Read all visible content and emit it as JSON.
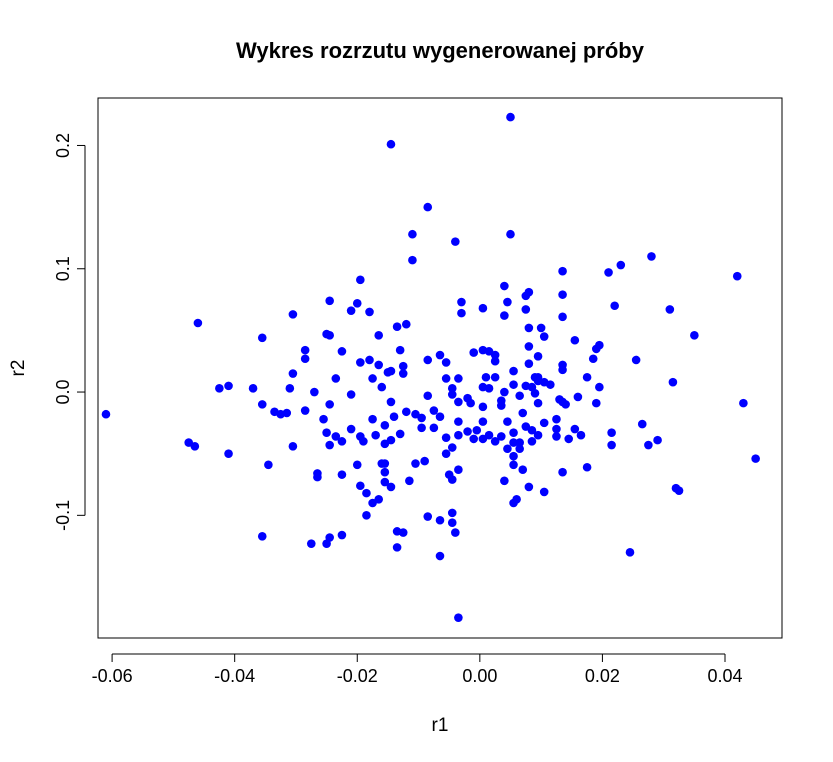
{
  "chart_data": {
    "type": "scatter",
    "title": "Wykres rozrzutu wygenerowanej próby",
    "xlabel": "r1",
    "ylabel": "r2",
    "xlim": [
      -0.0623,
      0.0493
    ],
    "ylim": [
      -0.1995,
      0.2385
    ],
    "x_ticks": [
      -0.06,
      -0.04,
      -0.02,
      0.0,
      0.02,
      0.04
    ],
    "x_tick_labels": [
      "-0.06",
      "-0.04",
      "-0.02",
      "0.00",
      "0.02",
      "0.04"
    ],
    "y_ticks": [
      -0.1,
      0.0,
      0.1,
      0.2
    ],
    "y_tick_labels": [
      "-0.1",
      "0.0",
      "0.1",
      "0.2"
    ],
    "grid": false,
    "point_color": "#0000ff",
    "points": [
      [
        0.005,
        0.223
      ],
      [
        -0.0145,
        0.201
      ],
      [
        -0.0085,
        0.15
      ],
      [
        -0.011,
        0.128
      ],
      [
        0.005,
        0.128
      ],
      [
        -0.004,
        0.122
      ],
      [
        -0.011,
        0.107
      ],
      [
        0.028,
        0.11
      ],
      [
        0.023,
        0.103
      ],
      [
        0.021,
        0.097
      ],
      [
        0.042,
        0.094
      ],
      [
        0.0135,
        0.098
      ],
      [
        -0.0195,
        0.091
      ],
      [
        0.004,
        0.086
      ],
      [
        0.008,
        0.081
      ],
      [
        -0.003,
        0.073
      ],
      [
        0.0045,
        0.073
      ],
      [
        0.0135,
        0.079
      ],
      [
        0.0075,
        0.078
      ],
      [
        -0.0245,
        0.074
      ],
      [
        -0.02,
        0.072
      ],
      [
        0.0005,
        0.068
      ],
      [
        0.022,
        0.07
      ],
      [
        -0.018,
        0.065
      ],
      [
        -0.021,
        0.066
      ],
      [
        -0.003,
        0.064
      ],
      [
        0.004,
        0.062
      ],
      [
        0.0075,
        0.067
      ],
      [
        0.0135,
        0.061
      ],
      [
        0.031,
        0.067
      ],
      [
        -0.0305,
        0.063
      ],
      [
        -0.046,
        0.056
      ],
      [
        -0.0135,
        0.053
      ],
      [
        -0.012,
        0.055
      ],
      [
        0.008,
        0.052
      ],
      [
        0.01,
        0.052
      ],
      [
        -0.0355,
        0.044
      ],
      [
        -0.0245,
        0.046
      ],
      [
        -0.025,
        0.047
      ],
      [
        -0.0165,
        0.046
      ],
      [
        0.0105,
        0.045
      ],
      [
        0.0155,
        0.042
      ],
      [
        0.035,
        0.046
      ],
      [
        -0.013,
        0.034
      ],
      [
        0.008,
        0.037
      ],
      [
        0.0005,
        0.034
      ],
      [
        0.0015,
        0.033
      ],
      [
        0.0025,
        0.03
      ],
      [
        0.0025,
        0.025
      ],
      [
        0.0195,
        0.038
      ],
      [
        0.019,
        0.035
      ],
      [
        -0.0285,
        0.034
      ],
      [
        -0.0225,
        0.033
      ],
      [
        -0.0065,
        0.03
      ],
      [
        -0.001,
        0.032
      ],
      [
        0.0095,
        0.029
      ],
      [
        -0.018,
        0.026
      ],
      [
        0.0255,
        0.026
      ],
      [
        -0.0285,
        0.027
      ],
      [
        -0.0195,
        0.024
      ],
      [
        0.0185,
        0.027
      ],
      [
        -0.0085,
        0.026
      ],
      [
        -0.0055,
        0.024
      ],
      [
        -0.0165,
        0.022
      ],
      [
        -0.0125,
        0.021
      ],
      [
        0.008,
        0.023
      ],
      [
        0.0135,
        0.022
      ],
      [
        -0.0145,
        0.017
      ],
      [
        -0.015,
        0.016
      ],
      [
        -0.0125,
        0.015
      ],
      [
        0.0055,
        0.017
      ],
      [
        0.0135,
        0.018
      ],
      [
        -0.0305,
        0.015
      ],
      [
        -0.0175,
        0.011
      ],
      [
        -0.0235,
        0.011
      ],
      [
        -0.0055,
        0.011
      ],
      [
        -0.0035,
        0.011
      ],
      [
        0.001,
        0.012
      ],
      [
        0.0025,
        0.012
      ],
      [
        0.009,
        0.012
      ],
      [
        0.0095,
        0.012
      ],
      [
        0.0095,
        0.009
      ],
      [
        0.0175,
        0.012
      ],
      [
        -0.0425,
        0.003
      ],
      [
        -0.037,
        0.003
      ],
      [
        -0.041,
        0.005
      ],
      [
        -0.031,
        0.003
      ],
      [
        -0.016,
        0.004
      ],
      [
        -0.0045,
        0.003
      ],
      [
        0.0005,
        0.004
      ],
      [
        0.0015,
        0.003
      ],
      [
        0.0055,
        0.006
      ],
      [
        0.0075,
        0.005
      ],
      [
        0.0085,
        0.004
      ],
      [
        0.0105,
        0.008
      ],
      [
        0.0115,
        0.006
      ],
      [
        0.0195,
        0.004
      ],
      [
        0.0315,
        0.008
      ],
      [
        -0.027,
        0.0
      ],
      [
        -0.021,
        -0.002
      ],
      [
        -0.0085,
        -0.003
      ],
      [
        -0.0045,
        -0.002
      ],
      [
        -0.002,
        -0.005
      ],
      [
        0.004,
        0.0
      ],
      [
        0.0065,
        -0.003
      ],
      [
        0.009,
        -0.001
      ],
      [
        0.016,
        -0.004
      ],
      [
        -0.0145,
        -0.008
      ],
      [
        -0.0245,
        -0.01
      ],
      [
        -0.0355,
        -0.01
      ],
      [
        -0.0315,
        -0.017
      ],
      [
        -0.0325,
        -0.018
      ],
      [
        -0.0285,
        -0.015
      ],
      [
        -0.0335,
        -0.016
      ],
      [
        -0.012,
        -0.016
      ],
      [
        -0.0075,
        -0.015
      ],
      [
        -0.0035,
        -0.008
      ],
      [
        -0.0015,
        -0.009
      ],
      [
        0.0005,
        -0.012
      ],
      [
        0.0035,
        -0.007
      ],
      [
        0.0035,
        -0.011
      ],
      [
        0.007,
        -0.017
      ],
      [
        0.0095,
        -0.009
      ],
      [
        0.0135,
        -0.008
      ],
      [
        0.014,
        -0.01
      ],
      [
        0.013,
        -0.006
      ],
      [
        0.019,
        -0.009
      ],
      [
        0.043,
        -0.009
      ],
      [
        -0.061,
        -0.018
      ],
      [
        -0.0175,
        -0.022
      ],
      [
        -0.014,
        -0.02
      ],
      [
        -0.0155,
        -0.027
      ],
      [
        -0.0095,
        -0.021
      ],
      [
        -0.0105,
        -0.018
      ],
      [
        -0.0065,
        -0.02
      ],
      [
        -0.0035,
        -0.024
      ],
      [
        0.0005,
        -0.024
      ],
      [
        0.0045,
        -0.024
      ],
      [
        0.0075,
        -0.028
      ],
      [
        0.0105,
        -0.025
      ],
      [
        0.0125,
        -0.022
      ],
      [
        0.0155,
        -0.03
      ],
      [
        0.0125,
        -0.03
      ],
      [
        0.0085,
        -0.031
      ],
      [
        0.0055,
        -0.033
      ],
      [
        0.0035,
        -0.036
      ],
      [
        -0.0005,
        -0.031
      ],
      [
        0.0015,
        -0.035
      ],
      [
        -0.002,
        -0.032
      ],
      [
        -0.0035,
        -0.035
      ],
      [
        -0.0055,
        -0.037
      ],
      [
        -0.0075,
        -0.029
      ],
      [
        -0.0095,
        -0.029
      ],
      [
        -0.013,
        -0.034
      ],
      [
        -0.017,
        -0.035
      ],
      [
        -0.021,
        -0.03
      ],
      [
        -0.0235,
        -0.036
      ],
      [
        -0.0255,
        -0.022
      ],
      [
        -0.025,
        -0.033
      ],
      [
        -0.0195,
        -0.036
      ],
      [
        -0.019,
        -0.04
      ],
      [
        -0.0155,
        -0.042
      ],
      [
        -0.0145,
        -0.039
      ],
      [
        -0.0245,
        -0.043
      ],
      [
        -0.0225,
        -0.04
      ],
      [
        -0.0305,
        -0.044
      ],
      [
        -0.0465,
        -0.044
      ],
      [
        -0.0475,
        -0.041
      ],
      [
        -0.041,
        -0.05
      ],
      [
        -0.0345,
        -0.059
      ],
      [
        -0.02,
        -0.059
      ],
      [
        -0.016,
        -0.058
      ],
      [
        -0.0155,
        -0.058
      ],
      [
        -0.0155,
        -0.065
      ],
      [
        -0.0105,
        -0.058
      ],
      [
        -0.009,
        -0.056
      ],
      [
        -0.0055,
        -0.05
      ],
      [
        -0.0045,
        -0.045
      ],
      [
        -0.001,
        -0.038
      ],
      [
        0.0005,
        -0.038
      ],
      [
        0.0025,
        -0.04
      ],
      [
        0.0045,
        -0.046
      ],
      [
        0.0055,
        -0.041
      ],
      [
        0.0065,
        -0.041
      ],
      [
        0.0065,
        -0.046
      ],
      [
        0.0055,
        -0.052
      ],
      [
        0.0055,
        -0.059
      ],
      [
        0.007,
        -0.063
      ],
      [
        0.0085,
        -0.04
      ],
      [
        0.0095,
        -0.035
      ],
      [
        0.0125,
        -0.036
      ],
      [
        0.0145,
        -0.038
      ],
      [
        0.0165,
        -0.035
      ],
      [
        0.0215,
        -0.033
      ],
      [
        0.0215,
        -0.043
      ],
      [
        0.029,
        -0.039
      ],
      [
        0.0275,
        -0.043
      ],
      [
        0.0265,
        -0.026
      ],
      [
        0.045,
        -0.054
      ],
      [
        0.0175,
        -0.061
      ],
      [
        0.0135,
        -0.065
      ],
      [
        -0.0035,
        -0.063
      ],
      [
        -0.005,
        -0.067
      ],
      [
        -0.0045,
        -0.071
      ],
      [
        -0.0115,
        -0.072
      ],
      [
        -0.0155,
        -0.073
      ],
      [
        -0.0195,
        -0.076
      ],
      [
        -0.0225,
        -0.067
      ],
      [
        -0.0265,
        -0.066
      ],
      [
        -0.0265,
        -0.069
      ],
      [
        0.004,
        -0.072
      ],
      [
        0.008,
        -0.077
      ],
      [
        0.0105,
        -0.081
      ],
      [
        0.006,
        -0.087
      ],
      [
        0.0055,
        -0.09
      ],
      [
        0.032,
        -0.078
      ],
      [
        0.0325,
        -0.08
      ],
      [
        -0.0185,
        -0.082
      ],
      [
        -0.0145,
        -0.077
      ],
      [
        -0.0165,
        -0.087
      ],
      [
        -0.0175,
        -0.09
      ],
      [
        -0.0185,
        -0.1
      ],
      [
        -0.0085,
        -0.101
      ],
      [
        -0.0065,
        -0.104
      ],
      [
        -0.0045,
        -0.098
      ],
      [
        -0.0045,
        -0.106
      ],
      [
        -0.004,
        -0.114
      ],
      [
        -0.0135,
        -0.113
      ],
      [
        -0.0125,
        -0.114
      ],
      [
        -0.0135,
        -0.126
      ],
      [
        -0.0225,
        -0.116
      ],
      [
        -0.0245,
        -0.118
      ],
      [
        -0.025,
        -0.123
      ],
      [
        -0.0275,
        -0.123
      ],
      [
        -0.0355,
        -0.117
      ],
      [
        -0.0065,
        -0.133
      ],
      [
        0.0245,
        -0.13
      ],
      [
        -0.0035,
        -0.183
      ]
    ]
  }
}
